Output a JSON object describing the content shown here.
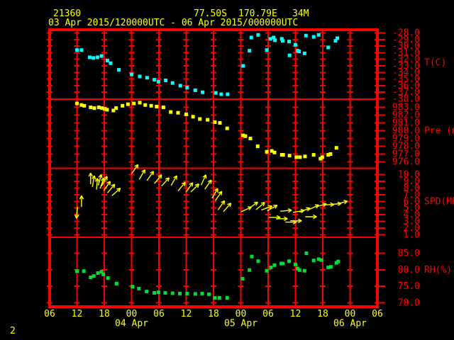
{
  "header": {
    "station_id": "21360",
    "latitude": "77.50S",
    "longitude": "170.79E",
    "elevation": "34M",
    "time_range": "03 Apr 2015/120000UTC - 06 Apr 2015/000000UTC"
  },
  "footer": {
    "page_number": "2"
  },
  "colors": {
    "background": "#000000",
    "grid": "#ff0000",
    "axis_text": "#ff0000",
    "time_text": "#ffff00",
    "temperature": "#00ffff",
    "pressure": "#ffff00",
    "wind": "#ffff00",
    "humidity": "#00dd33"
  },
  "chart_data": {
    "type": "scatter",
    "x": {
      "hours": 72,
      "tick_every": 6,
      "hour_labels": [
        "06",
        "12",
        "18",
        "00",
        "06",
        "12",
        "18",
        "00",
        "06",
        "12",
        "18",
        "00",
        "06"
      ],
      "date_labels": [
        {
          "text": "04 Apr",
          "hour": 18
        },
        {
          "text": "05 Apr",
          "hour": 42
        },
        {
          "text": "06 Apr",
          "hour": 66
        }
      ]
    },
    "panels": [
      {
        "name": "temperature",
        "label": "T(C)",
        "label_at": -32.5,
        "marker": "square",
        "color": "#00ffff",
        "ylim": [
          -38.05,
          -27.52
        ],
        "yticks": [
          -28,
          -29,
          -30,
          -31,
          -32,
          -33,
          -34,
          -35,
          -36,
          -37,
          -38
        ],
        "ytick_labels": [
          "-28.0",
          "-29.0",
          "-30.0",
          "-31.0",
          "-32.0",
          "-33.0",
          "-34.0",
          "-35.0",
          "-36.0",
          "-37.0",
          "-38.0"
        ],
        "points": [
          [
            6,
            -30.6
          ],
          [
            7,
            -30.6
          ],
          [
            8.8,
            -31.7
          ],
          [
            9.6,
            -31.8
          ],
          [
            10.5,
            -31.7
          ],
          [
            11.4,
            -31.5
          ],
          [
            12.7,
            -32.2
          ],
          [
            13.4,
            -32.6
          ],
          [
            15.2,
            -33.6
          ],
          [
            18,
            -34.3
          ],
          [
            19.8,
            -34.6
          ],
          [
            21.4,
            -34.8
          ],
          [
            23,
            -35.1
          ],
          [
            23.9,
            -35.4
          ],
          [
            25.5,
            -35.2
          ],
          [
            27,
            -35.6
          ],
          [
            28.7,
            -36.0
          ],
          [
            30.2,
            -36.3
          ],
          [
            32,
            -36.7
          ],
          [
            33.6,
            -37.0
          ],
          [
            36.5,
            -37.1
          ],
          [
            37.7,
            -37.3
          ],
          [
            39.1,
            -37.3
          ],
          [
            42.5,
            -33.0
          ],
          [
            43.9,
            -30.7
          ],
          [
            44.3,
            -28.7
          ],
          [
            45.8,
            -28.3
          ],
          [
            47.7,
            -30.6
          ],
          [
            48.5,
            -28.9
          ],
          [
            49.2,
            -28.7
          ],
          [
            49.5,
            -29.1
          ],
          [
            51,
            -28.9
          ],
          [
            51.2,
            -29.2
          ],
          [
            52.6,
            -29.3
          ],
          [
            52.7,
            -31.4
          ],
          [
            54,
            -29.8
          ],
          [
            54.5,
            -30.7
          ],
          [
            54.8,
            -30.8
          ],
          [
            56,
            -31.1
          ],
          [
            56.3,
            -28.4
          ],
          [
            58,
            -28.6
          ],
          [
            59.1,
            -28.3
          ],
          [
            61.2,
            -30.2
          ],
          [
            62.8,
            -29.2
          ],
          [
            63.2,
            -28.8
          ]
        ]
      },
      {
        "name": "pressure",
        "label": "Pre (mb)",
        "label_at": 980,
        "marker": "square",
        "color": "#ffff00",
        "ylim": [
          975.18,
          984.05
        ],
        "yticks": [
          983,
          982,
          981,
          980,
          979,
          978,
          977,
          976
        ],
        "ytick_labels": [
          "983.0",
          "982.0",
          "981.0",
          "980.0",
          "979.0",
          "978.0",
          "977.0",
          "976.0"
        ],
        "points": [
          [
            6,
            983.5
          ],
          [
            7,
            983.3
          ],
          [
            7.6,
            983.2
          ],
          [
            9,
            983.0
          ],
          [
            9.8,
            982.9
          ],
          [
            10.8,
            983.0
          ],
          [
            11.5,
            982.9
          ],
          [
            12.1,
            982.8
          ],
          [
            12.6,
            982.7
          ],
          [
            14,
            982.6
          ],
          [
            14.6,
            982.9
          ],
          [
            16,
            983.2
          ],
          [
            17.2,
            983.4
          ],
          [
            18.5,
            983.5
          ],
          [
            19.8,
            983.6
          ],
          [
            21,
            983.3
          ],
          [
            22.3,
            983.2
          ],
          [
            23.5,
            983.1
          ],
          [
            25,
            983.0
          ],
          [
            26.6,
            982.4
          ],
          [
            28.2,
            982.3
          ],
          [
            30,
            982.1
          ],
          [
            31.5,
            981.8
          ],
          [
            33,
            981.5
          ],
          [
            34.7,
            981.4
          ],
          [
            36.3,
            981.1
          ],
          [
            37.4,
            981.0
          ],
          [
            39,
            980.3
          ],
          [
            42.5,
            979.4
          ],
          [
            43,
            979.3
          ],
          [
            44.1,
            979.0
          ],
          [
            45.7,
            978.0
          ],
          [
            47.7,
            977.3
          ],
          [
            48.8,
            977.4
          ],
          [
            49.4,
            977.2
          ],
          [
            51,
            976.9
          ],
          [
            51.3,
            976.9
          ],
          [
            52.7,
            976.8
          ],
          [
            54.2,
            976.6
          ],
          [
            55,
            976.6
          ],
          [
            56.1,
            976.7
          ],
          [
            58,
            976.9
          ],
          [
            59.5,
            976.4
          ],
          [
            59.9,
            976.6
          ],
          [
            61.2,
            976.9
          ],
          [
            61.7,
            977.0
          ],
          [
            63,
            977.8
          ]
        ]
      },
      {
        "name": "wind_speed",
        "label": "SPD(MPS)",
        "label_at": 6,
        "marker": "arrow",
        "color": "#ffff00",
        "ylim": [
          0.63,
          10.95
        ],
        "yticks": [
          10,
          9,
          8,
          7,
          6,
          5,
          4,
          3,
          2,
          1
        ],
        "ytick_labels": [
          "10.0",
          "9.0",
          "8.0",
          "7.0",
          "6.0",
          "5.0",
          "4.0",
          "3.0",
          "2.0",
          "1.0"
        ],
        "points": [
          [
            6,
            4.3,
            185
          ],
          [
            7,
            6.0,
            0
          ],
          [
            9,
            9.4,
            0
          ],
          [
            9.6,
            9.0,
            10
          ],
          [
            10.4,
            8.6,
            5
          ],
          [
            11,
            9.2,
            15
          ],
          [
            11.5,
            8.7,
            20
          ],
          [
            12,
            9.0,
            30
          ],
          [
            12.6,
            8.3,
            35
          ],
          [
            13.5,
            7.9,
            40
          ],
          [
            14.6,
            7.4,
            48
          ],
          [
            18.7,
            10.8,
            35
          ],
          [
            20.3,
            10.0,
            30
          ],
          [
            22.1,
            9.8,
            35
          ],
          [
            23.8,
            9.3,
            40
          ],
          [
            25.4,
            8.9,
            42
          ],
          [
            27.3,
            9.1,
            30
          ],
          [
            29,
            8.2,
            40
          ],
          [
            30.7,
            8.1,
            35
          ],
          [
            31.9,
            8.0,
            45
          ],
          [
            33.8,
            9.2,
            25
          ],
          [
            34.8,
            8.5,
            35
          ],
          [
            36.3,
            7.2,
            30
          ],
          [
            37.1,
            6.8,
            35
          ],
          [
            37.7,
            5.4,
            35
          ],
          [
            39,
            5.1,
            42
          ],
          [
            43.2,
            4.8,
            65
          ],
          [
            44.7,
            5.4,
            55
          ],
          [
            46.3,
            5.3,
            50
          ],
          [
            47.7,
            5.0,
            70
          ],
          [
            48.9,
            5.0,
            60
          ],
          [
            49.4,
            3.6,
            90
          ],
          [
            51,
            3.4,
            90
          ],
          [
            51.9,
            4.6,
            85
          ],
          [
            53,
            2.9,
            90
          ],
          [
            54.1,
            3.1,
            90
          ],
          [
            54.7,
            4.5,
            80
          ],
          [
            56,
            4.7,
            70
          ],
          [
            57.4,
            3.7,
            90
          ],
          [
            58,
            5.1,
            65
          ],
          [
            59.6,
            5.4,
            75
          ],
          [
            61.2,
            5.5,
            88
          ],
          [
            62.8,
            5.6,
            85
          ],
          [
            64.2,
            5.8,
            75
          ]
        ]
      },
      {
        "name": "relative_humidity",
        "label": "RH(%)",
        "label_at": 80,
        "marker": "square",
        "color": "#00dd33",
        "ylim": [
          68.82,
          89.82
        ],
        "yticks": [
          85,
          80,
          75,
          70
        ],
        "ytick_labels": [
          "85.0",
          "80.0",
          "75.0",
          "70.0"
        ],
        "points": [
          [
            6,
            79.6
          ],
          [
            7.5,
            79.6
          ],
          [
            9,
            77.7
          ],
          [
            9.7,
            78.1
          ],
          [
            10.6,
            79.0
          ],
          [
            11.4,
            79.4
          ],
          [
            11.8,
            78.6
          ],
          [
            12.8,
            77.5
          ],
          [
            14.7,
            75.8
          ],
          [
            18.2,
            74.9
          ],
          [
            19.6,
            74.3
          ],
          [
            21.3,
            73.4
          ],
          [
            23,
            73.0
          ],
          [
            23.9,
            73.2
          ],
          [
            25.4,
            73.0
          ],
          [
            27,
            72.9
          ],
          [
            28.6,
            72.8
          ],
          [
            30.2,
            72.8
          ],
          [
            32,
            72.7
          ],
          [
            33.5,
            72.8
          ],
          [
            35,
            72.6
          ],
          [
            36.3,
            71.5
          ],
          [
            37.3,
            71.5
          ],
          [
            39,
            71.5
          ],
          [
            42.4,
            77.3
          ],
          [
            43.9,
            79.9
          ],
          [
            44.4,
            84.0
          ],
          [
            45.8,
            82.6
          ],
          [
            47.7,
            79.7
          ],
          [
            48.6,
            80.7
          ],
          [
            49.4,
            81.4
          ],
          [
            50.9,
            81.9
          ],
          [
            51.2,
            81.9
          ],
          [
            52.6,
            82.6
          ],
          [
            54,
            81.6
          ],
          [
            54.5,
            80.4
          ],
          [
            54.9,
            79.9
          ],
          [
            56,
            79.7
          ],
          [
            56.4,
            85.0
          ],
          [
            58,
            82.8
          ],
          [
            59.1,
            83.2
          ],
          [
            59.7,
            82.9
          ],
          [
            61.2,
            80.7
          ],
          [
            61.8,
            80.9
          ],
          [
            63,
            82.1
          ],
          [
            63.4,
            82.5
          ]
        ]
      }
    ]
  }
}
